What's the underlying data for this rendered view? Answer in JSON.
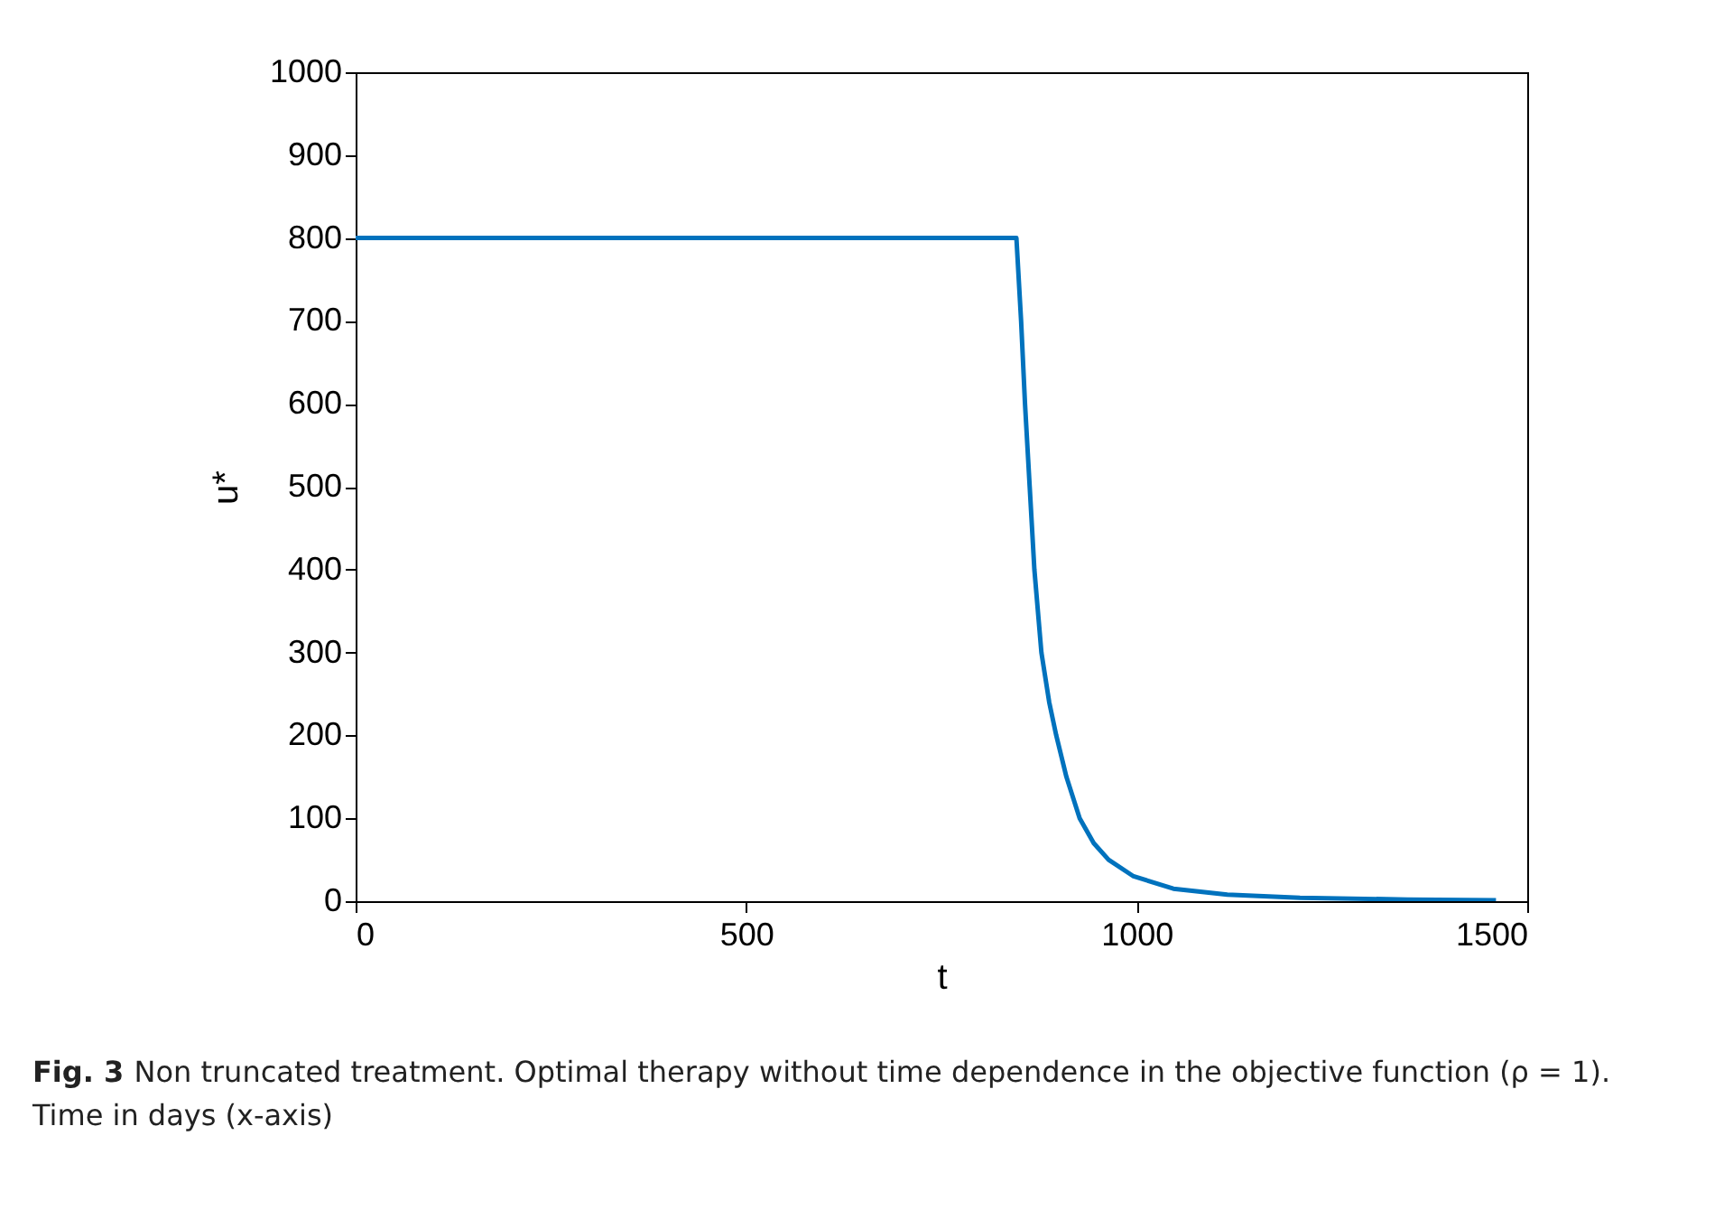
{
  "chart_data": {
    "type": "line",
    "xlabel": "t",
    "ylabel": "u*",
    "x": [
      0,
      846,
      852,
      857,
      863,
      869,
      878,
      888,
      897,
      910,
      927,
      945,
      964,
      996,
      1047,
      1116,
      1209,
      1347,
      1460
    ],
    "series": [
      {
        "color": "#0072bd",
        "values": [
          800,
          800,
          700,
          600,
          500,
          400,
          300,
          240,
          200,
          150,
          100,
          70,
          50,
          30,
          15,
          8,
          4,
          2,
          1
        ]
      }
    ],
    "xlim": [
      0,
      1500
    ],
    "xticks": [
      0,
      500,
      1000,
      1500
    ],
    "ylim": [
      0,
      1000
    ],
    "yticks": [
      0,
      100,
      200,
      300,
      400,
      500,
      600,
      700,
      800,
      900,
      1000
    ],
    "grid": false,
    "legend": false,
    "marker": "none",
    "line_style": "solid",
    "annotations": [
      "Fig. 3",
      "Non truncated treatment. Optimal therapy without time dependence in the objective function (ρ = 1). Time in days (x-axis)"
    ]
  }
}
